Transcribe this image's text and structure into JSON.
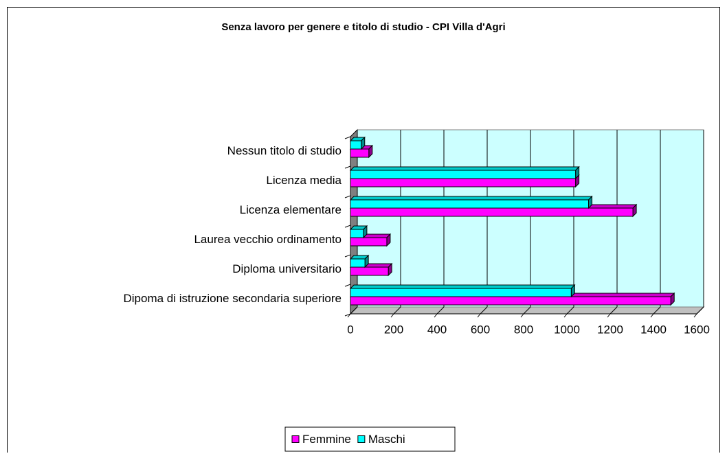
{
  "chart_data": {
    "type": "bar",
    "orientation": "horizontal",
    "title": "Senza lavoro per genere e titolo di studio - CPI Villa d'Agri",
    "categories": [
      "Dipoma di istruzione secondaria superiore",
      "Diploma universitario",
      "Laurea vecchio ordinamento",
      "Licenza elementare",
      "Licenza media",
      "Nessun titolo di studio"
    ],
    "series": [
      {
        "name": "Femmine",
        "color": "#ff00ff",
        "values": [
          1480,
          175,
          168,
          1305,
          1040,
          85
        ]
      },
      {
        "name": "Maschi",
        "color": "#00ffff",
        "values": [
          1020,
          67,
          60,
          1100,
          1040,
          50
        ]
      }
    ],
    "xlim": [
      0,
      1600
    ],
    "xticks": [
      0,
      200,
      400,
      600,
      800,
      1000,
      1200,
      1400,
      1600
    ],
    "grid": true,
    "legend": "bottom"
  }
}
